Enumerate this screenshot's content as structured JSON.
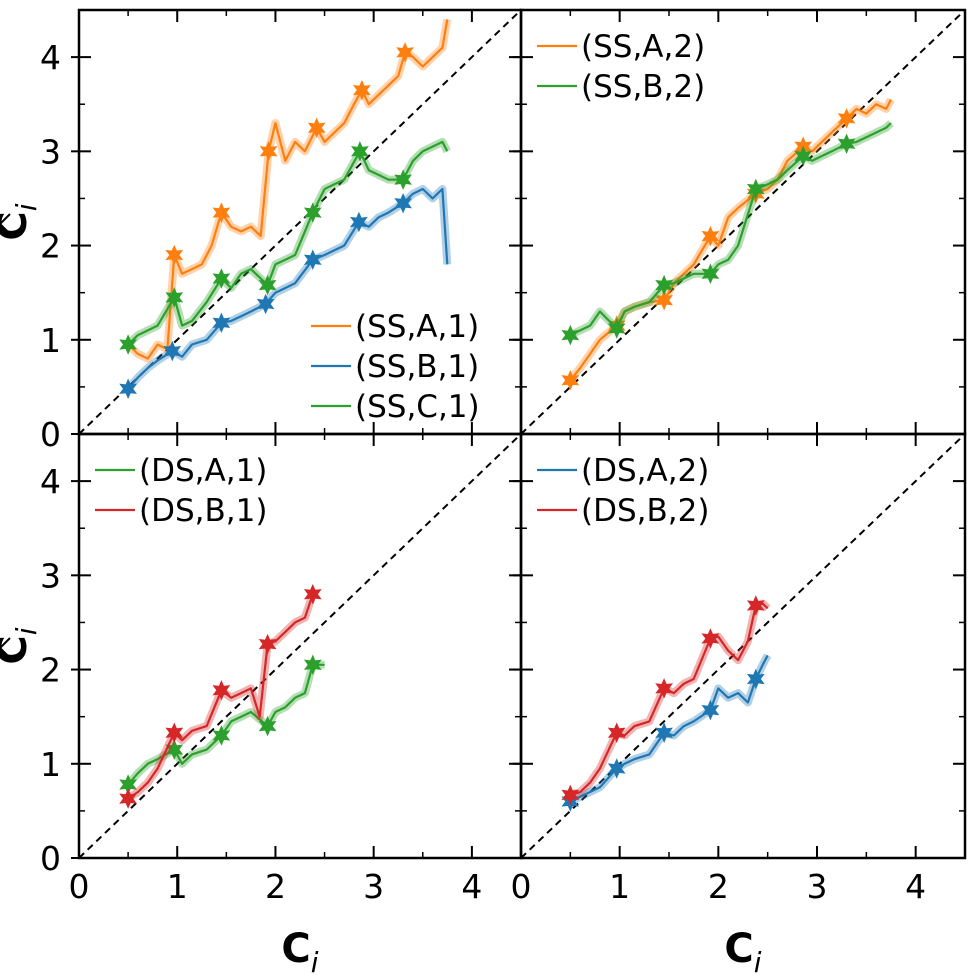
{
  "chart_data": [
    {
      "type": "line",
      "panel": "top-left",
      "xlim": [
        0,
        4.5
      ],
      "ylim": [
        0,
        4.5
      ],
      "xticks": [
        0,
        1,
        2,
        3,
        4
      ],
      "yticks": [
        0,
        1,
        2,
        3,
        4
      ],
      "xtick_labels": [],
      "ytick_labels": [
        "0",
        "1",
        "2",
        "3",
        "4"
      ],
      "xlabel": "",
      "ylabel": "Ĉ_i",
      "legend_position": "bottom-right",
      "diagonal": true,
      "series": [
        {
          "name": "(SS,A,1)",
          "color": "#ff7f0e",
          "x": [
            0.5,
            0.6,
            0.7,
            0.8,
            0.9,
            0.97,
            1.05,
            1.15,
            1.25,
            1.35,
            1.45,
            1.55,
            1.65,
            1.75,
            1.85,
            1.93,
            2.0,
            2.1,
            2.2,
            2.3,
            2.42,
            2.5,
            2.6,
            2.7,
            2.8,
            2.88,
            2.95,
            3.05,
            3.15,
            3.25,
            3.32,
            3.4,
            3.5,
            3.6,
            3.7,
            3.75
          ],
          "y": [
            0.95,
            0.85,
            0.8,
            0.95,
            0.9,
            1.9,
            1.7,
            1.75,
            1.8,
            2.0,
            2.35,
            2.2,
            2.15,
            2.2,
            2.1,
            3.0,
            3.3,
            2.9,
            3.1,
            3.0,
            3.25,
            3.1,
            3.2,
            3.3,
            3.5,
            3.65,
            3.5,
            3.6,
            3.7,
            3.8,
            4.05,
            4.0,
            3.9,
            4.0,
            4.1,
            4.4
          ],
          "markers_x": [
            0.97,
            1.45,
            1.93,
            2.42,
            2.88,
            3.32
          ],
          "markers_y": [
            1.9,
            2.35,
            3.0,
            3.25,
            3.65,
            4.05
          ]
        },
        {
          "name": "(SS,B,1)",
          "color": "#1f77b4",
          "x": [
            0.5,
            0.6,
            0.7,
            0.8,
            0.95,
            1.05,
            1.15,
            1.3,
            1.45,
            1.55,
            1.65,
            1.75,
            1.9,
            2.0,
            2.1,
            2.2,
            2.38,
            2.5,
            2.6,
            2.7,
            2.85,
            2.95,
            3.05,
            3.15,
            3.3,
            3.4,
            3.5,
            3.6,
            3.7,
            3.75
          ],
          "y": [
            0.48,
            0.6,
            0.7,
            0.78,
            0.88,
            0.82,
            0.95,
            1.0,
            1.18,
            1.2,
            1.25,
            1.3,
            1.38,
            1.5,
            1.55,
            1.6,
            1.85,
            1.9,
            1.95,
            2.0,
            2.25,
            2.2,
            2.3,
            2.35,
            2.45,
            2.55,
            2.6,
            2.5,
            2.6,
            1.8
          ],
          "markers_x": [
            0.5,
            0.95,
            1.45,
            1.9,
            2.38,
            2.85,
            3.3
          ],
          "markers_y": [
            0.48,
            0.88,
            1.18,
            1.38,
            1.85,
            2.25,
            2.45
          ]
        },
        {
          "name": "(SS,C,1)",
          "color": "#2ca02c",
          "x": [
            0.5,
            0.6,
            0.7,
            0.8,
            0.97,
            1.05,
            1.15,
            1.3,
            1.45,
            1.55,
            1.65,
            1.75,
            1.92,
            2.0,
            2.1,
            2.2,
            2.38,
            2.5,
            2.6,
            2.7,
            2.86,
            2.95,
            3.05,
            3.15,
            3.3,
            3.4,
            3.5,
            3.6,
            3.7,
            3.75
          ],
          "y": [
            0.95,
            1.05,
            1.1,
            1.15,
            1.45,
            1.15,
            1.2,
            1.4,
            1.65,
            1.55,
            1.7,
            1.75,
            1.58,
            1.8,
            1.85,
            1.9,
            2.35,
            2.6,
            2.65,
            2.7,
            3.0,
            2.8,
            2.75,
            2.7,
            2.7,
            2.9,
            3.0,
            3.05,
            3.1,
            3.0
          ],
          "markers_x": [
            0.5,
            0.97,
            1.45,
            1.92,
            2.38,
            2.86,
            3.3
          ],
          "markers_y": [
            0.95,
            1.45,
            1.65,
            1.58,
            2.35,
            3.0,
            2.7
          ]
        }
      ]
    },
    {
      "type": "line",
      "panel": "top-right",
      "xlim": [
        0,
        4.5
      ],
      "ylim": [
        0,
        4.5
      ],
      "xticks": [
        0,
        1,
        2,
        3,
        4
      ],
      "yticks": [
        0,
        1,
        2,
        3,
        4
      ],
      "xtick_labels": [],
      "ytick_labels": [],
      "xlabel": "",
      "ylabel": "",
      "legend_position": "top-left",
      "diagonal": true,
      "series": [
        {
          "name": "(SS,A,2)",
          "color": "#ff7f0e",
          "x": [
            0.5,
            0.6,
            0.7,
            0.8,
            0.97,
            1.05,
            1.15,
            1.3,
            1.45,
            1.55,
            1.65,
            1.75,
            1.92,
            2.0,
            2.1,
            2.2,
            2.38,
            2.5,
            2.6,
            2.7,
            2.86,
            2.95,
            3.05,
            3.15,
            3.3,
            3.4,
            3.5,
            3.6,
            3.7,
            3.75
          ],
          "y": [
            0.57,
            0.7,
            0.85,
            1.0,
            1.15,
            1.3,
            1.35,
            1.4,
            1.42,
            1.6,
            1.7,
            1.8,
            2.1,
            2.0,
            2.3,
            2.4,
            2.55,
            2.6,
            2.7,
            2.9,
            3.05,
            3.0,
            3.1,
            3.2,
            3.35,
            3.45,
            3.4,
            3.5,
            3.45,
            3.55
          ],
          "markers_x": [
            0.5,
            0.97,
            1.45,
            1.92,
            2.38,
            2.86,
            3.3
          ],
          "markers_y": [
            0.57,
            1.15,
            1.42,
            2.1,
            2.55,
            3.05,
            3.35
          ]
        },
        {
          "name": "(SS,B,2)",
          "color": "#2ca02c",
          "x": [
            0.5,
            0.6,
            0.7,
            0.8,
            0.97,
            1.05,
            1.15,
            1.3,
            1.45,
            1.55,
            1.65,
            1.75,
            1.92,
            2.0,
            2.1,
            2.2,
            2.38,
            2.5,
            2.6,
            2.7,
            2.86,
            2.95,
            3.05,
            3.15,
            3.3,
            3.4,
            3.5,
            3.6,
            3.7,
            3.75
          ],
          "y": [
            1.05,
            1.1,
            1.15,
            1.3,
            1.12,
            1.3,
            1.35,
            1.4,
            1.58,
            1.6,
            1.65,
            1.7,
            1.7,
            1.8,
            1.85,
            2.0,
            2.6,
            2.65,
            2.7,
            2.8,
            2.95,
            2.9,
            2.95,
            3.0,
            3.08,
            3.1,
            3.15,
            3.2,
            3.25,
            3.3
          ],
          "markers_x": [
            0.5,
            0.97,
            1.45,
            1.92,
            2.38,
            2.86,
            3.3
          ],
          "markers_y": [
            1.05,
            1.12,
            1.58,
            1.7,
            2.6,
            2.95,
            3.08
          ]
        }
      ]
    },
    {
      "type": "line",
      "panel": "bottom-left",
      "xlim": [
        0,
        4.5
      ],
      "ylim": [
        0,
        4.5
      ],
      "xticks": [
        0,
        1,
        2,
        3,
        4
      ],
      "yticks": [
        0,
        1,
        2,
        3,
        4
      ],
      "xtick_labels": [
        "0",
        "1",
        "2",
        "3",
        "4"
      ],
      "ytick_labels": [
        "0",
        "1",
        "2",
        "3",
        "4"
      ],
      "xlabel": "C_i",
      "ylabel": "Ĉ_i",
      "legend_position": "top-left",
      "diagonal": true,
      "series": [
        {
          "name": "(DS,A,1)",
          "color": "#2ca02c",
          "x": [
            0.5,
            0.6,
            0.7,
            0.8,
            0.97,
            1.05,
            1.15,
            1.3,
            1.45,
            1.55,
            1.65,
            1.75,
            1.92,
            2.0,
            2.1,
            2.2,
            2.3,
            2.38,
            2.45,
            2.5
          ],
          "y": [
            0.78,
            0.9,
            1.0,
            1.05,
            1.15,
            1.0,
            1.1,
            1.15,
            1.3,
            1.45,
            1.5,
            1.55,
            1.4,
            1.55,
            1.6,
            1.7,
            1.75,
            2.05,
            2.05,
            2.05
          ],
          "markers_x": [
            0.5,
            0.97,
            1.45,
            1.92,
            2.38
          ],
          "markers_y": [
            0.78,
            1.15,
            1.3,
            1.4,
            2.05
          ]
        },
        {
          "name": "(DS,B,1)",
          "color": "#d62728",
          "x": [
            0.5,
            0.6,
            0.7,
            0.8,
            0.97,
            1.05,
            1.15,
            1.3,
            1.45,
            1.55,
            1.65,
            1.75,
            1.84,
            1.92,
            2.0,
            2.1,
            2.2,
            2.3,
            2.38
          ],
          "y": [
            0.63,
            0.7,
            0.8,
            0.95,
            1.33,
            1.25,
            1.35,
            1.4,
            1.78,
            1.7,
            1.75,
            1.8,
            1.5,
            2.27,
            2.3,
            2.4,
            2.5,
            2.55,
            2.8
          ],
          "markers_x": [
            0.5,
            0.97,
            1.45,
            1.92,
            2.38
          ],
          "markers_y": [
            0.63,
            1.33,
            1.78,
            2.27,
            2.8
          ]
        }
      ]
    },
    {
      "type": "line",
      "panel": "bottom-right",
      "xlim": [
        0,
        4.5
      ],
      "ylim": [
        0,
        4.5
      ],
      "xticks": [
        0,
        1,
        2,
        3,
        4
      ],
      "yticks": [
        0,
        1,
        2,
        3,
        4
      ],
      "xtick_labels": [
        "0",
        "1",
        "2",
        "3",
        "4"
      ],
      "ytick_labels": [],
      "xlabel": "C_i",
      "ylabel": "",
      "legend_position": "top-left",
      "diagonal": true,
      "series": [
        {
          "name": "(DS,A,2)",
          "color": "#1f77b4",
          "x": [
            0.5,
            0.6,
            0.7,
            0.8,
            0.97,
            1.05,
            1.15,
            1.3,
            1.45,
            1.55,
            1.65,
            1.75,
            1.92,
            2.0,
            2.1,
            2.2,
            2.3,
            2.38,
            2.45,
            2.5
          ],
          "y": [
            0.6,
            0.65,
            0.7,
            0.75,
            0.95,
            1.0,
            1.05,
            1.1,
            1.33,
            1.3,
            1.4,
            1.45,
            1.57,
            1.8,
            1.7,
            1.75,
            1.65,
            1.9,
            2.05,
            2.15
          ],
          "markers_x": [
            0.5,
            0.97,
            1.45,
            1.92,
            2.38
          ],
          "markers_y": [
            0.6,
            0.95,
            1.33,
            1.57,
            1.9
          ]
        },
        {
          "name": "(DS,B,2)",
          "color": "#d62728",
          "x": [
            0.5,
            0.6,
            0.7,
            0.8,
            0.97,
            1.05,
            1.15,
            1.3,
            1.45,
            1.55,
            1.65,
            1.75,
            1.92,
            2.0,
            2.1,
            2.2,
            2.3,
            2.38,
            2.45,
            2.5
          ],
          "y": [
            0.67,
            0.7,
            0.8,
            0.95,
            1.33,
            1.3,
            1.4,
            1.45,
            1.8,
            1.75,
            1.85,
            1.9,
            2.33,
            2.35,
            2.2,
            2.1,
            2.3,
            2.68,
            2.7,
            2.65
          ],
          "markers_x": [
            0.5,
            0.97,
            1.45,
            1.92,
            2.38
          ],
          "markers_y": [
            0.67,
            1.33,
            1.8,
            2.33,
            2.68
          ]
        }
      ]
    }
  ]
}
